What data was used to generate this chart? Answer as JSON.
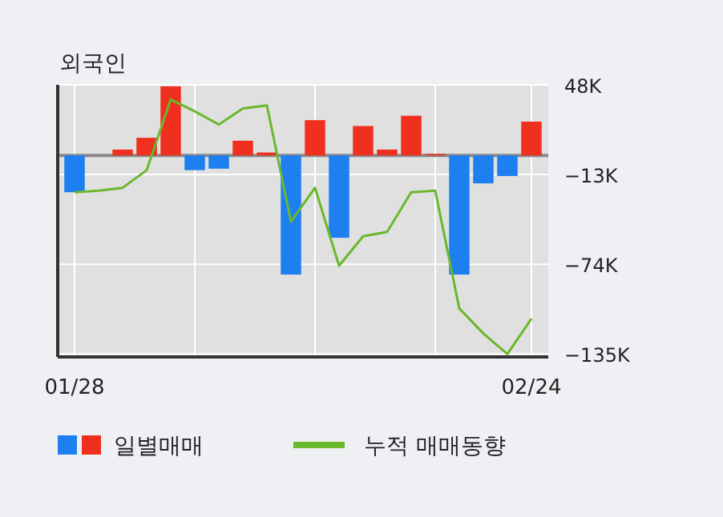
{
  "chart_data": {
    "type": "bar",
    "title": "외국인",
    "categories": [
      "01/28",
      null,
      null,
      null,
      null,
      null,
      null,
      null,
      null,
      null,
      null,
      null,
      null,
      null,
      null,
      null,
      null,
      null,
      null,
      "02/24"
    ],
    "series": [
      {
        "name": "일별매매",
        "colors": [
          "#1e7ff0",
          "#f0301e",
          "#f0301e",
          "#f0301e",
          "#f0301e",
          "#1e7ff0",
          "#1e7ff0",
          "#f0301e",
          "#f0301e",
          "#1e7ff0",
          "#f0301e",
          "#1e7ff0",
          "#f0301e",
          "#f0301e",
          "#f0301e",
          "#f0301e",
          "#1e7ff0",
          "#1e7ff0",
          "#1e7ff0",
          "#f0301e"
        ],
        "values": [
          -25,
          0,
          4,
          12,
          47,
          -10,
          -9,
          10,
          2,
          -81,
          24,
          -56,
          20,
          4,
          27,
          1,
          -81,
          -19,
          -14,
          23
        ]
      },
      {
        "name": "누적 매매동향",
        "type": "line",
        "color": "#6ab82c",
        "values": [
          -25,
          -24,
          -22,
          -10,
          38,
          30,
          21,
          32,
          34,
          -45,
          -22,
          -75,
          -55,
          -52,
          -25,
          -24,
          -104,
          -121,
          -135,
          -111
        ]
      }
    ],
    "ylim": [
      -137,
      48
    ],
    "yticks": [
      {
        "value": 48,
        "label": "48K"
      },
      {
        "value": -13,
        "label": "−13K"
      },
      {
        "value": -74,
        "label": "−74K"
      },
      {
        "value": -135,
        "label": "−135K"
      }
    ],
    "grid": true,
    "legend": "bottom",
    "marker": "none",
    "line_style": "solid"
  }
}
